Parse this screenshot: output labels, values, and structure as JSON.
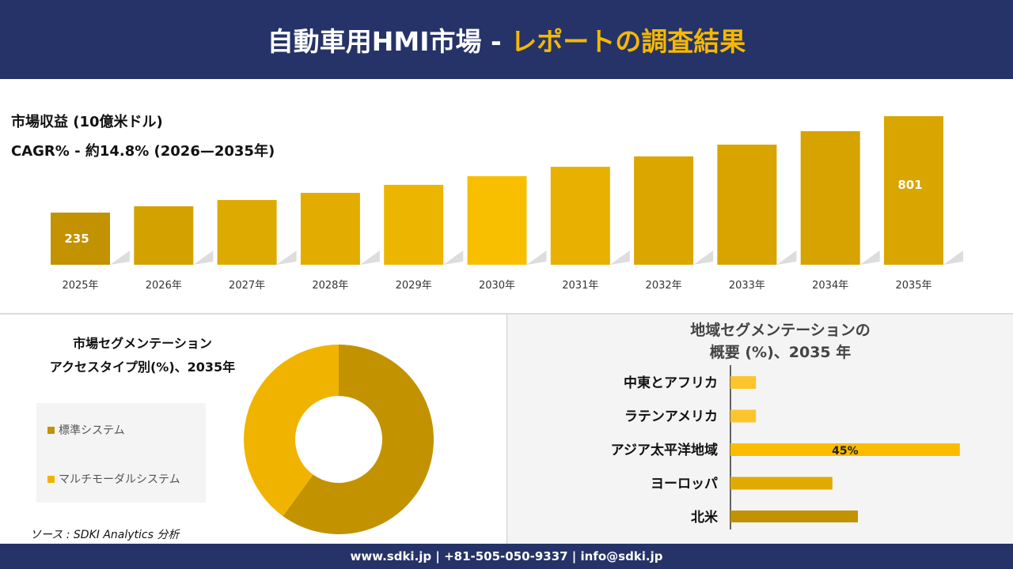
{
  "header": {
    "title_main": "自動車用HMI市場 -",
    "title_highlight": "レポートの調査結果"
  },
  "colors": {
    "navy": "#253368",
    "gold": "#f5b800",
    "dark_gold": "#c39200"
  },
  "chart_data": [
    {
      "type": "bar",
      "title": "市場収益 (10億米ドル)",
      "subtitle": "CAGR% - 約14.8% (2026—2035年)",
      "categories": [
        "2025年",
        "2026年",
        "2027年",
        "2028年",
        "2029年",
        "2030年",
        "2031年",
        "2032年",
        "2033年",
        "2034年",
        "2035年"
      ],
      "values": [
        235,
        272,
        309,
        351,
        398,
        449,
        504,
        565,
        634,
        713,
        801
      ],
      "data_labels": {
        "0": "235",
        "10": "801"
      },
      "colors": [
        "#c39200",
        "#d4a200",
        "#dcaa00",
        "#e2ad00",
        "#ecb500",
        "#f7bf00",
        "#e8b000",
        "#dca600",
        "#d9a400",
        "#d7a300",
        "#d9a500"
      ]
    },
    {
      "type": "pie",
      "title_line1": "市場セグメンテーション",
      "title_line2": "アクセスタイプ別(%)、2035年",
      "categories": [
        "標準システム",
        "マルチモーダルシステム"
      ],
      "values": [
        60,
        40
      ],
      "colors": [
        "#c39200",
        "#f0b400"
      ],
      "donut": true,
      "legend": "left"
    },
    {
      "type": "bar",
      "orientation": "horizontal",
      "title_line1": "地域セグメンテーションの",
      "title_line2": "概要 (%)、2035 年",
      "categories": [
        "中東とアフリカ",
        "ラテンアメリカ",
        "アジア太平洋地域",
        "ヨーロッパ",
        "北米"
      ],
      "values": [
        5,
        5,
        45,
        20,
        25
      ],
      "data_labels": {
        "2": "45%"
      },
      "colors": [
        "#fcc52c",
        "#fcc52c",
        "#fbbc00",
        "#e1aa00",
        "#c39200"
      ]
    }
  ],
  "source": "ソース : SDKI Analytics 分析",
  "footer": "www.sdki.jp | +81-505-050-9337 | info@sdki.jp"
}
